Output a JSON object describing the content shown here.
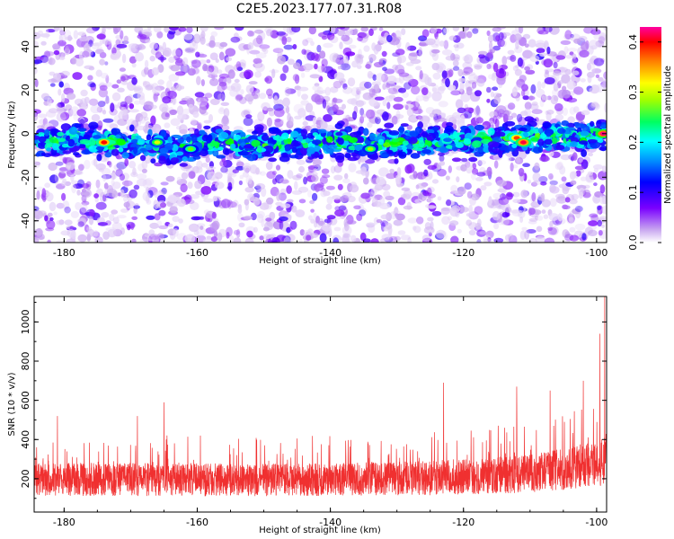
{
  "title": "C2E5.2023.177.07.31.R08",
  "chart_data": [
    {
      "type": "heatmap",
      "title": "C2E5.2023.177.07.31.R08",
      "xlabel": "Height of straight line (km)",
      "ylabel": "Frequency (Hz)",
      "xlim": [
        -184.5,
        -98.5
      ],
      "ylim": [
        -50,
        49
      ],
      "xticks": [
        -180,
        -160,
        -140,
        -120,
        -100
      ],
      "yticks": [
        40,
        20,
        0,
        -20,
        -40
      ],
      "xtick_labels": [
        "-180",
        "-160",
        "-140",
        "-120",
        "-100"
      ],
      "ytick_labels": [
        "40",
        "20",
        "0",
        "-20",
        "-40"
      ],
      "band_center_hz": [
        [
          -184,
          -4
        ],
        [
          -178,
          -2
        ],
        [
          -174,
          -4
        ],
        [
          -168,
          -5
        ],
        [
          -162,
          -7
        ],
        [
          -158,
          -4
        ],
        [
          -150,
          -5
        ],
        [
          -144,
          -4
        ],
        [
          -140,
          -3
        ],
        [
          -134,
          -5
        ],
        [
          -128,
          -4
        ],
        [
          -122,
          -3
        ],
        [
          -118,
          -3
        ],
        [
          -112,
          -2
        ],
        [
          -106,
          -1
        ],
        [
          -102,
          -2
        ],
        [
          -99,
          0
        ]
      ],
      "band_halfwidth_hz": 7,
      "hotspots": [
        {
          "x": -174,
          "y": -4,
          "value": 0.38
        },
        {
          "x": -166,
          "y": -4,
          "value": 0.28
        },
        {
          "x": -161,
          "y": -7,
          "value": 0.26
        },
        {
          "x": -134,
          "y": -7,
          "value": 0.27
        },
        {
          "x": -112,
          "y": -2,
          "value": 0.36
        },
        {
          "x": -111,
          "y": -4,
          "value": 0.4
        },
        {
          "x": -99,
          "y": 0,
          "value": 0.42
        }
      ],
      "colorbar": {
        "label": "Normalized spectral amplitude",
        "range": [
          0,
          0.43
        ],
        "ticks": [
          0.0,
          0.1,
          0.2,
          0.3,
          0.4
        ],
        "tick_labels": [
          "0.0",
          "0.1",
          "0.2",
          "0.3",
          "0.4"
        ],
        "colors": [
          "#ffffff",
          "#c8a6f0",
          "#7a00ff",
          "#0000ff",
          "#00ffff",
          "#00ff00",
          "#ffff00",
          "#ff8000",
          "#ff0000",
          "#ff00a0"
        ]
      }
    },
    {
      "type": "line",
      "xlabel": "Height of straight line (km)",
      "ylabel": "SNR (10 * v/v)",
      "xlim": [
        -184.5,
        -98.5
      ],
      "ylim": [
        30,
        1130
      ],
      "xticks": [
        -180,
        -160,
        -140,
        -120,
        -100
      ],
      "yticks": [
        200,
        400,
        600,
        800,
        1000
      ],
      "xtick_labels": [
        "-180",
        "-160",
        "-140",
        "-120",
        "-100"
      ],
      "ytick_labels": [
        "200",
        "400",
        "600",
        "800",
        "1000"
      ],
      "color": "#f03030",
      "baseline": [
        [
          -184,
          190
        ],
        [
          -150,
          185
        ],
        [
          -125,
          195
        ],
        [
          -110,
          215
        ],
        [
          -100,
          260
        ],
        [
          -98.5,
          300
        ]
      ],
      "notable_peaks": [
        {
          "x": -181,
          "y": 520
        },
        {
          "x": -169,
          "y": 520
        },
        {
          "x": -165,
          "y": 590
        },
        {
          "x": -123,
          "y": 690
        },
        {
          "x": -112,
          "y": 670
        },
        {
          "x": -107,
          "y": 650
        },
        {
          "x": -102,
          "y": 700
        },
        {
          "x": -99.5,
          "y": 940
        },
        {
          "x": -98.8,
          "y": 1130
        }
      ]
    }
  ]
}
